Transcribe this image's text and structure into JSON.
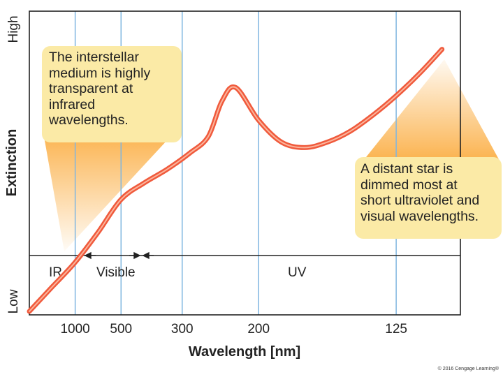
{
  "chart_data": {
    "type": "line",
    "title": "",
    "xlabel": "Wavelength [nm]",
    "ylabel": "Extinction",
    "ylabel_ticks": [
      "Low",
      "High"
    ],
    "x_ticks": [
      "1000",
      "500",
      "300",
      "200",
      "125"
    ],
    "x_tick_positions_inv_um": [
      1.0,
      2.0,
      3.333,
      5.0,
      8.0
    ],
    "x_range_inv_um": [
      0.0,
      9.4
    ],
    "y_range": [
      0,
      1
    ],
    "grid": "vertical lines at tick wavelengths",
    "series": [
      {
        "name": "Extinction curve",
        "x_inv_um": [
          0.0,
          0.5,
          1.0,
          1.5,
          2.0,
          2.5,
          3.0,
          3.5,
          3.9,
          4.2,
          4.5,
          5.0,
          5.5,
          6.0,
          6.5,
          7.0,
          7.5,
          8.0,
          8.5,
          9.0
        ],
        "y": [
          0.0,
          0.09,
          0.18,
          0.29,
          0.41,
          0.47,
          0.52,
          0.58,
          0.64,
          0.77,
          0.82,
          0.7,
          0.62,
          0.6,
          0.62,
          0.66,
          0.72,
          0.79,
          0.87,
          0.96
        ]
      }
    ],
    "bands": [
      {
        "label": "IR"
      },
      {
        "label": "Visible"
      },
      {
        "label": "UV"
      }
    ],
    "annotations": [
      {
        "text": "The interstellar medium is highly transparent at infrared wavelengths.",
        "lines": [
          "The interstellar",
          "medium is highly",
          "transparent at",
          "infrared",
          "wavelengths."
        ]
      },
      {
        "text": "A distant star is dimmed most at short ultraviolet and visual wavelengths.",
        "lines": [
          "A distant star is",
          "dimmed most at",
          "short ultraviolet and",
          "visual wavelengths."
        ]
      }
    ]
  },
  "colors": {
    "curve": "#f05a3c",
    "curve_core": "#fbb59d",
    "grid": "#7fb6e0",
    "callout": "#fbeaa6",
    "pointer": "#fbc56a",
    "axis": "#222222"
  },
  "copyright": "© 2016 Cengage Learning®"
}
